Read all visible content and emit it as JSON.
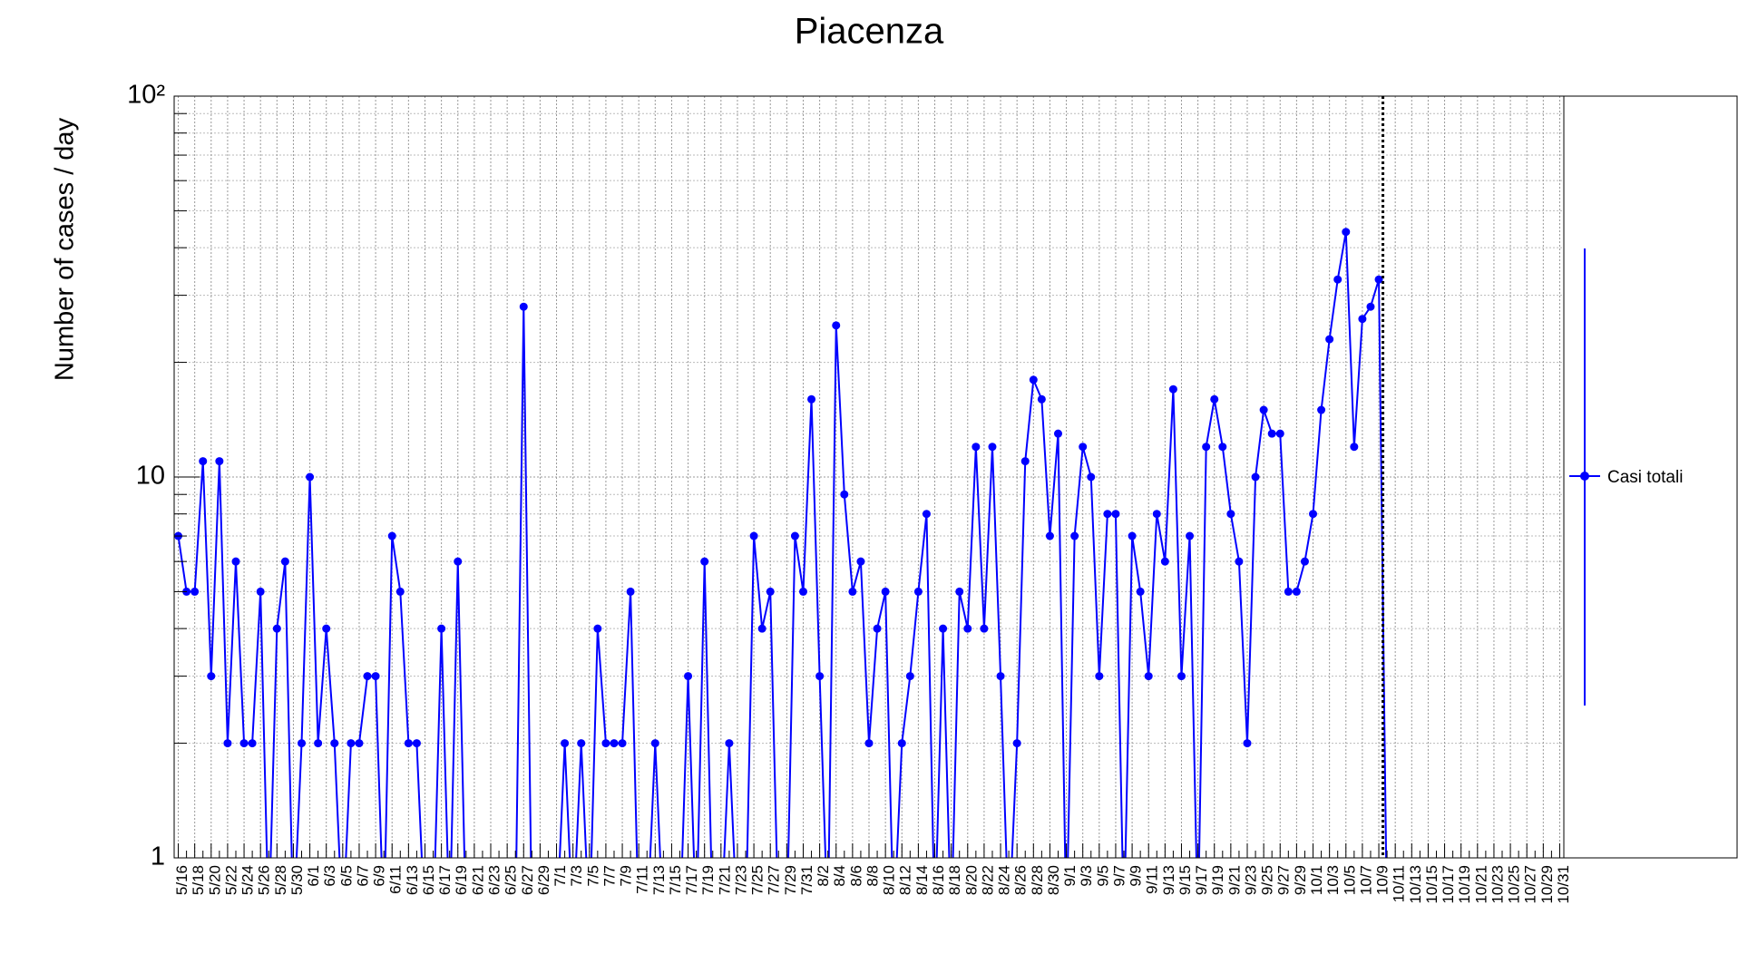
{
  "chart_data": {
    "type": "line",
    "title": "Piacenza",
    "y_label": "Number of cases / day",
    "log_y": true,
    "grid": true,
    "legend_position": "right",
    "ylim": [
      1,
      100
    ],
    "yticks": [
      1,
      10,
      {
        "value": 100,
        "label": "10²"
      }
    ],
    "categories": [
      "5/16",
      null,
      "5/18",
      null,
      "5/20",
      null,
      "5/22",
      null,
      "5/24",
      null,
      "5/26",
      null,
      "5/28",
      null,
      "5/30",
      null,
      "6/1",
      null,
      "6/3",
      null,
      "6/5",
      null,
      "6/7",
      null,
      "6/9",
      null,
      "6/11",
      null,
      "6/13",
      null,
      "6/15",
      null,
      "6/17",
      null,
      "6/19",
      null,
      "6/21",
      null,
      "6/23",
      null,
      "6/25",
      null,
      "6/27",
      null,
      "6/29",
      null,
      "7/1",
      null,
      "7/3",
      null,
      "7/5",
      null,
      "7/7",
      null,
      "7/9",
      null,
      "7/11",
      null,
      "7/13",
      null,
      "7/15",
      null,
      "7/17",
      null,
      "7/19",
      null,
      "7/21",
      null,
      "7/23",
      null,
      "7/25",
      null,
      "7/27",
      null,
      "7/29",
      null,
      "7/31",
      null,
      "8/2",
      null,
      "8/4",
      null,
      "8/6",
      null,
      "8/8",
      null,
      "8/10",
      null,
      "8/12",
      null,
      "8/14",
      null,
      "8/16",
      null,
      "8/18",
      null,
      "8/20",
      null,
      "8/22",
      null,
      "8/24",
      null,
      "8/26",
      null,
      "8/28",
      null,
      "8/30",
      null,
      "9/1",
      null,
      "9/3",
      null,
      "9/5",
      null,
      "9/7",
      null,
      "9/9",
      null,
      "9/11",
      null,
      "9/13",
      null,
      "9/15",
      null,
      "9/17",
      null,
      "9/19",
      null,
      "9/21",
      null,
      "9/23",
      null,
      "9/25",
      null,
      "9/27",
      null,
      "9/29",
      null,
      "10/1",
      null,
      "10/3",
      null,
      "10/5",
      null,
      "10/7",
      null,
      "10/9",
      null,
      "10/11",
      null,
      "10/13",
      null,
      "10/15",
      null,
      "10/17",
      null,
      "10/19",
      null,
      "10/21",
      null,
      "10/23",
      null,
      "10/25",
      null,
      "10/27",
      null,
      "10/29",
      null,
      "10/31"
    ],
    "series": [
      {
        "name": "Casi totali",
        "color": "#0000ff",
        "values": [
          7,
          5,
          5,
          11,
          3,
          11,
          2,
          6,
          2,
          2,
          5,
          0,
          4,
          6,
          0,
          2,
          10,
          2,
          4,
          2,
          0,
          2,
          2,
          3,
          3,
          0,
          7,
          5,
          2,
          2,
          0,
          0,
          4,
          0,
          6,
          0,
          0,
          0,
          0,
          0,
          0,
          0,
          28,
          0,
          0,
          0,
          0,
          2,
          0,
          2,
          0,
          4,
          2,
          2,
          2,
          5,
          0,
          0,
          2,
          0,
          0,
          0,
          3,
          0,
          6,
          0,
          0,
          2,
          0,
          0,
          7,
          4,
          5,
          0,
          0,
          7,
          5,
          16,
          3,
          0,
          25,
          9,
          5,
          6,
          2,
          4,
          5,
          0,
          2,
          3,
          5,
          8,
          0,
          4,
          0,
          5,
          4,
          12,
          4,
          12,
          3,
          0,
          2,
          11,
          18,
          16,
          7,
          13,
          0,
          7,
          12,
          10,
          3,
          8,
          8,
          0,
          7,
          5,
          3,
          8,
          6,
          17,
          3,
          7,
          0,
          12,
          16,
          12,
          8,
          6,
          2,
          10,
          15,
          13,
          13,
          5,
          5,
          6,
          8,
          15,
          23,
          33,
          44,
          12,
          26,
          28,
          33,
          0,
          null,
          null,
          null,
          null,
          null,
          null,
          null,
          null,
          null,
          null,
          null,
          null,
          null,
          null,
          null,
          null,
          null,
          null,
          null,
          null,
          null
        ]
      }
    ]
  }
}
